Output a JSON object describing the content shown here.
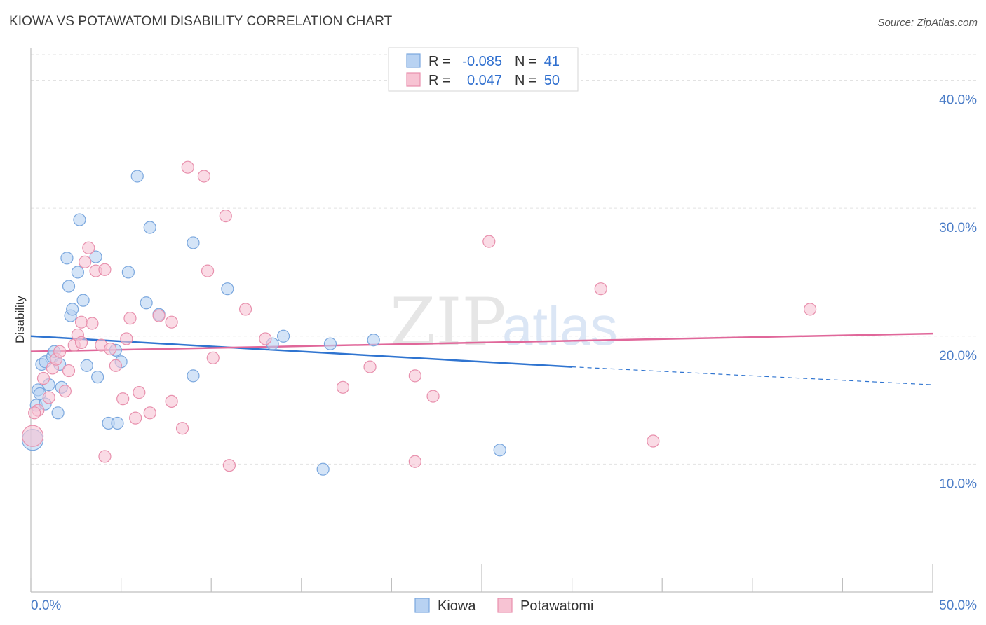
{
  "title": "KIOWA VS POTAWATOMI DISABILITY CORRELATION CHART",
  "source": "Source: ZipAtlas.com",
  "watermark": {
    "zip": "ZIP",
    "atlas": "atlas"
  },
  "colors": {
    "kiowa_fill": "#b8d2f2",
    "kiowa_stroke": "#7aa7de",
    "kiowa_line": "#2f74d0",
    "potawatomi_fill": "#f7c3d3",
    "potawatomi_stroke": "#e890ad",
    "potawatomi_line": "#e0679a",
    "value_text": "#2f6fcf",
    "grid": "#e2e2e2"
  },
  "legend_stats": [
    {
      "series": "Kiowa",
      "r_label": "R =",
      "r_value": "-0.085",
      "n_label": "N =",
      "n_value": "41"
    },
    {
      "series": "Potawatomi",
      "r_label": "R =",
      "r_value": "0.047",
      "n_label": "N =",
      "n_value": "50"
    }
  ],
  "chart_data": {
    "type": "scatter",
    "title": "KIOWA VS POTAWATOMI DISABILITY CORRELATION CHART",
    "xlabel": "",
    "ylabel": "Disability",
    "xlim": [
      0,
      50
    ],
    "ylim": [
      0,
      42
    ],
    "x_tick_labels": [
      "0.0%",
      "50.0%"
    ],
    "y_ticks": [
      10,
      20,
      30,
      40
    ],
    "y_tick_labels": [
      "10.0%",
      "20.0%",
      "30.0%",
      "40.0%"
    ],
    "grid": true,
    "legend": "bottom-center",
    "series": [
      {
        "name": "Kiowa",
        "r": -0.085,
        "n": 41,
        "trend": {
          "x0": 0,
          "y0": 20.0,
          "x1": 30,
          "y1": 17.6,
          "dashed_to_x": 50,
          "dashed_to_y": 16.2
        },
        "points": [
          [
            0.1,
            11.9
          ],
          [
            0.3,
            14.6
          ],
          [
            0.4,
            15.8
          ],
          [
            0.5,
            15.5
          ],
          [
            0.6,
            17.8
          ],
          [
            0.8,
            14.7
          ],
          [
            0.8,
            18.0
          ],
          [
            1.0,
            16.2
          ],
          [
            1.2,
            18.4
          ],
          [
            1.3,
            18.8
          ],
          [
            1.5,
            14.0
          ],
          [
            1.6,
            17.8
          ],
          [
            1.7,
            16.0
          ],
          [
            2.0,
            26.1
          ],
          [
            2.1,
            23.9
          ],
          [
            2.2,
            21.6
          ],
          [
            2.3,
            22.1
          ],
          [
            2.6,
            25.0
          ],
          [
            2.7,
            29.1
          ],
          [
            2.9,
            22.8
          ],
          [
            3.1,
            17.7
          ],
          [
            3.6,
            26.2
          ],
          [
            3.7,
            16.8
          ],
          [
            4.3,
            13.2
          ],
          [
            4.7,
            18.9
          ],
          [
            4.8,
            13.2
          ],
          [
            5.0,
            18.0
          ],
          [
            5.4,
            25.0
          ],
          [
            5.9,
            32.5
          ],
          [
            6.4,
            22.6
          ],
          [
            6.6,
            28.5
          ],
          [
            7.1,
            21.7
          ],
          [
            9.0,
            27.3
          ],
          [
            9.0,
            16.9
          ],
          [
            10.9,
            23.7
          ],
          [
            13.4,
            19.4
          ],
          [
            14.0,
            20.0
          ],
          [
            16.2,
            9.6
          ],
          [
            16.6,
            19.4
          ],
          [
            19.0,
            19.7
          ],
          [
            26.0,
            11.1
          ]
        ]
      },
      {
        "name": "Potawatomi",
        "r": 0.047,
        "n": 50,
        "trend": {
          "x0": 0,
          "y0": 18.8,
          "x1": 50,
          "y1": 20.2
        },
        "points": [
          [
            0.1,
            12.2
          ],
          [
            0.4,
            14.2
          ],
          [
            0.7,
            16.7
          ],
          [
            1.0,
            15.2
          ],
          [
            1.2,
            17.5
          ],
          [
            1.4,
            18.2
          ],
          [
            1.6,
            18.8
          ],
          [
            1.9,
            15.7
          ],
          [
            2.1,
            17.3
          ],
          [
            2.4,
            19.3
          ],
          [
            2.6,
            20.1
          ],
          [
            2.8,
            21.1
          ],
          [
            3.0,
            25.8
          ],
          [
            3.2,
            26.9
          ],
          [
            3.4,
            21.0
          ],
          [
            3.6,
            25.1
          ],
          [
            3.9,
            19.3
          ],
          [
            4.1,
            25.2
          ],
          [
            4.1,
            10.6
          ],
          [
            4.4,
            19.0
          ],
          [
            4.7,
            17.7
          ],
          [
            5.1,
            15.1
          ],
          [
            5.3,
            19.8
          ],
          [
            5.5,
            21.4
          ],
          [
            5.8,
            13.6
          ],
          [
            6.0,
            15.6
          ],
          [
            6.6,
            14.0
          ],
          [
            7.1,
            21.6
          ],
          [
            7.8,
            14.9
          ],
          [
            7.8,
            21.1
          ],
          [
            8.4,
            12.8
          ],
          [
            8.7,
            33.2
          ],
          [
            9.6,
            32.5
          ],
          [
            9.8,
            25.1
          ],
          [
            10.1,
            18.3
          ],
          [
            10.8,
            29.4
          ],
          [
            11.0,
            9.9
          ],
          [
            11.9,
            22.1
          ],
          [
            13.0,
            19.8
          ],
          [
            17.3,
            16.0
          ],
          [
            18.8,
            17.6
          ],
          [
            21.3,
            10.2
          ],
          [
            21.3,
            16.9
          ],
          [
            22.3,
            15.3
          ],
          [
            25.4,
            27.4
          ],
          [
            31.6,
            23.7
          ],
          [
            34.5,
            11.8
          ],
          [
            43.2,
            22.1
          ],
          [
            0.2,
            14.0
          ],
          [
            2.8,
            19.5
          ]
        ]
      }
    ]
  },
  "legend_bottom": [
    {
      "series": "Kiowa",
      "label": "Kiowa"
    },
    {
      "series": "Potawatomi",
      "label": "Potawatomi"
    }
  ]
}
